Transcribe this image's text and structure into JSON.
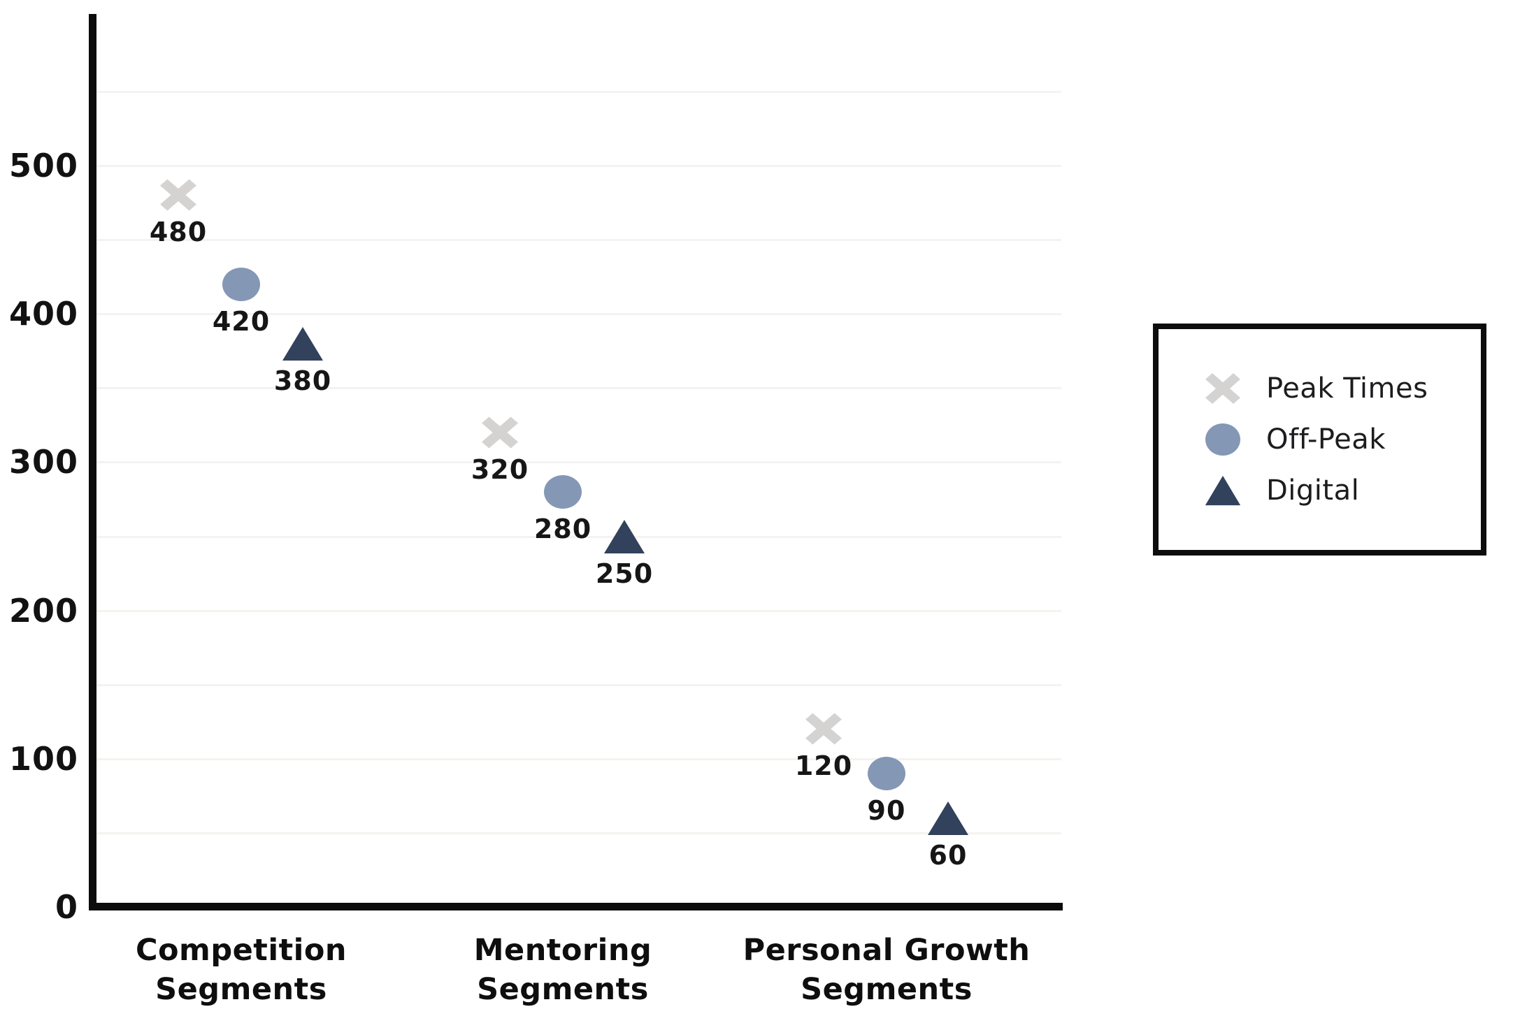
{
  "chart_data": {
    "type": "scatter",
    "title": "",
    "xlabel": "",
    "ylabel": "",
    "categories": [
      "Competition\nSegments",
      "Mentoring\nSegments",
      "Personal Growth\nSegments"
    ],
    "series": [
      {
        "name": "Peak Times",
        "marker": "x-marker",
        "color": "#d5d3d1",
        "values": [
          480,
          320,
          120
        ]
      },
      {
        "name": "Off-Peak",
        "marker": "circle-marker",
        "color": "#8497b5",
        "values": [
          420,
          280,
          90
        ]
      },
      {
        "name": "Digital",
        "marker": "triangle-marker",
        "color": "#32415c",
        "values": [
          380,
          250,
          60
        ]
      }
    ],
    "data_labels": [
      [
        "480",
        "320",
        "120"
      ],
      [
        "420",
        "280",
        "90"
      ],
      [
        "380",
        "250",
        "60"
      ]
    ],
    "y_ticks": [
      "0",
      "100",
      "200",
      "300",
      "400",
      "500"
    ],
    "y_tick_values": [
      0,
      100,
      200,
      300,
      400,
      500
    ],
    "ylim": [
      0,
      600
    ],
    "grid": {
      "visible": true,
      "interval": 50,
      "max": 550
    },
    "legend": {
      "position": "right",
      "border": true
    },
    "colors": {
      "axis": "#0c0c0c",
      "gridline": "#f4f3f0",
      "value_label": "#161616",
      "legend_text": "#1d1d1f",
      "background": "#ffffff"
    }
  }
}
